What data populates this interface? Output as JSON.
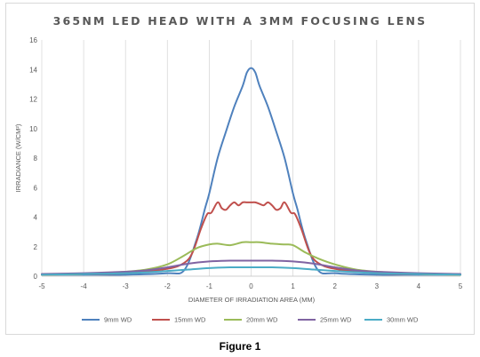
{
  "caption": "Figure 1",
  "chart_data": {
    "type": "line",
    "title": "365NM LED HEAD WITH A 3MM FOCUSING LENS",
    "xlabel": "DIAMETER OF IRRADIATION AREA (MM)",
    "ylabel": "IRRADIANCE (W/CM²)",
    "xlim": [
      -5,
      5
    ],
    "ylim": [
      0,
      16
    ],
    "xticks": [
      -5,
      -4,
      -3,
      -2,
      -1,
      0,
      1,
      2,
      3,
      4,
      5
    ],
    "yticks": [
      0,
      2,
      4,
      6,
      8,
      10,
      12,
      14,
      16
    ],
    "grid": "vertical",
    "legend_position": "bottom",
    "series": [
      {
        "name": "9mm WD",
        "color": "#4f81bd",
        "x": [
          -5,
          -4,
          -3,
          -2,
          -1.6,
          -1.3,
          -1.1,
          -1,
          -0.8,
          -0.6,
          -0.4,
          -0.2,
          -0.1,
          0,
          0.1,
          0.2,
          0.4,
          0.6,
          0.8,
          1,
          1.1,
          1.3,
          1.6,
          2,
          3,
          4,
          5
        ],
        "y": [
          0.1,
          0.1,
          0.1,
          0.2,
          0.4,
          2.5,
          4.6,
          5.6,
          8.0,
          9.8,
          11.5,
          12.9,
          13.8,
          14.1,
          13.8,
          12.9,
          11.5,
          9.8,
          8.0,
          5.6,
          4.6,
          2.5,
          0.4,
          0.2,
          0.1,
          0.1,
          0.1
        ]
      },
      {
        "name": "15mm WD",
        "color": "#c0504d",
        "x": [
          -5,
          -4,
          -3,
          -2,
          -1.6,
          -1.4,
          -1.2,
          -1.05,
          -0.95,
          -0.8,
          -0.7,
          -0.6,
          -0.5,
          -0.4,
          -0.3,
          -0.2,
          -0.1,
          0,
          0.1,
          0.2,
          0.3,
          0.4,
          0.5,
          0.6,
          0.7,
          0.8,
          0.95,
          1.05,
          1.2,
          1.4,
          1.6,
          2,
          3,
          4,
          5
        ],
        "y": [
          0.1,
          0.15,
          0.2,
          0.5,
          0.9,
          1.6,
          3.2,
          4.2,
          4.3,
          5.0,
          4.6,
          4.5,
          4.8,
          5.0,
          4.8,
          5.0,
          5.0,
          5.0,
          5.0,
          4.9,
          4.8,
          5.0,
          4.8,
          4.5,
          4.6,
          5.0,
          4.3,
          4.2,
          3.2,
          1.6,
          0.9,
          0.5,
          0.2,
          0.15,
          0.1
        ]
      },
      {
        "name": "20mm WD",
        "color": "#9bbb59",
        "x": [
          -5,
          -4,
          -3,
          -2.5,
          -2,
          -1.6,
          -1.3,
          -1,
          -0.8,
          -0.5,
          -0.2,
          0,
          0.2,
          0.5,
          0.8,
          1,
          1.3,
          1.6,
          2,
          2.5,
          3,
          4,
          5
        ],
        "y": [
          0.1,
          0.15,
          0.3,
          0.45,
          0.8,
          1.4,
          1.9,
          2.15,
          2.2,
          2.1,
          2.3,
          2.3,
          2.3,
          2.2,
          2.15,
          2.1,
          1.6,
          1.2,
          0.8,
          0.45,
          0.3,
          0.15,
          0.1
        ]
      },
      {
        "name": "25mm WD",
        "color": "#8064a2",
        "x": [
          -5,
          -4,
          -3,
          -2.5,
          -2,
          -1.5,
          -1,
          -0.5,
          0,
          0.5,
          1,
          1.5,
          2,
          2.5,
          3,
          4,
          5
        ],
        "y": [
          0.15,
          0.2,
          0.3,
          0.4,
          0.6,
          0.85,
          1.0,
          1.05,
          1.05,
          1.05,
          1.0,
          0.85,
          0.6,
          0.4,
          0.3,
          0.2,
          0.15
        ]
      },
      {
        "name": "30mm WD",
        "color": "#4bacc6",
        "x": [
          -5,
          -4,
          -3,
          -2,
          -1.5,
          -1,
          -0.5,
          0,
          0.5,
          1,
          1.5,
          2,
          3,
          4,
          5
        ],
        "y": [
          0.1,
          0.15,
          0.2,
          0.35,
          0.45,
          0.55,
          0.6,
          0.6,
          0.6,
          0.55,
          0.45,
          0.35,
          0.2,
          0.15,
          0.1
        ]
      }
    ]
  }
}
